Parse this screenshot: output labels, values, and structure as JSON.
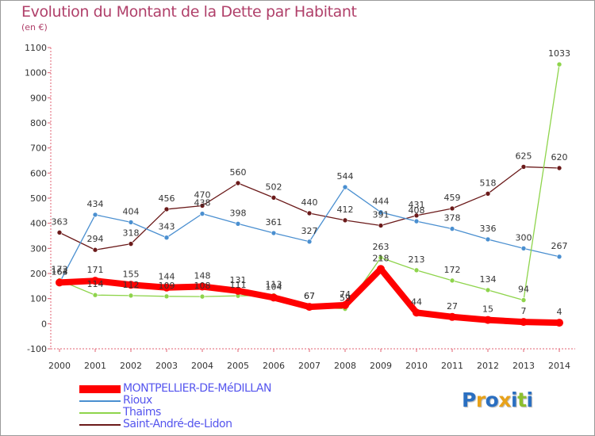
{
  "title": "Evolution du Montant de la Dette par Habitant",
  "subtitle": "(en €)",
  "logo": [
    "P",
    "r",
    "o",
    "x",
    "i",
    "t",
    "i"
  ],
  "logo_colors": [
    "#2a6fc1",
    "#e8a21a",
    "#2a6fc1",
    "#e8a21a",
    "#2a6fc1",
    "#8cbf2f",
    "#2a6fc1"
  ],
  "chart_data": {
    "type": "line",
    "x": [
      "2000",
      "2001",
      "2002",
      "2003",
      "2004",
      "2005",
      "2006",
      "2007",
      "2008",
      "2009",
      "2010",
      "2011",
      "2012",
      "2013",
      "2014"
    ],
    "ylim": [
      -100,
      1100
    ],
    "yticks": [
      -100,
      0,
      100,
      200,
      300,
      400,
      500,
      600,
      700,
      800,
      900,
      1000,
      1100
    ],
    "grid": false,
    "legend": "bottom-left",
    "series": [
      {
        "name": "Saint-André-de-Lidon",
        "color": "#6b1a1a",
        "values": [
          363,
          294,
          318,
          456,
          470,
          560,
          502,
          440,
          412,
          391,
          431,
          459,
          518,
          625,
          620
        ]
      },
      {
        "name": "Rioux",
        "color": "#4a8fd0",
        "values": [
          163,
          434,
          404,
          343,
          438,
          398,
          361,
          327,
          544,
          444,
          408,
          378,
          336,
          300,
          267
        ]
      },
      {
        "name": "Thaims",
        "color": "#8ed44b",
        "values": [
          173,
          114,
          112,
          109,
          108,
          111,
          113,
          67,
          59,
          263,
          213,
          172,
          134,
          94,
          1033
        ]
      },
      {
        "name": "MONTPELLIER-DE-MéDILLAN",
        "color": "#ff0000",
        "values": [
          164,
          171,
          155,
          144,
          148,
          131,
          104,
          67,
          74,
          218,
          44,
          27,
          15,
          7,
          4
        ]
      }
    ]
  }
}
